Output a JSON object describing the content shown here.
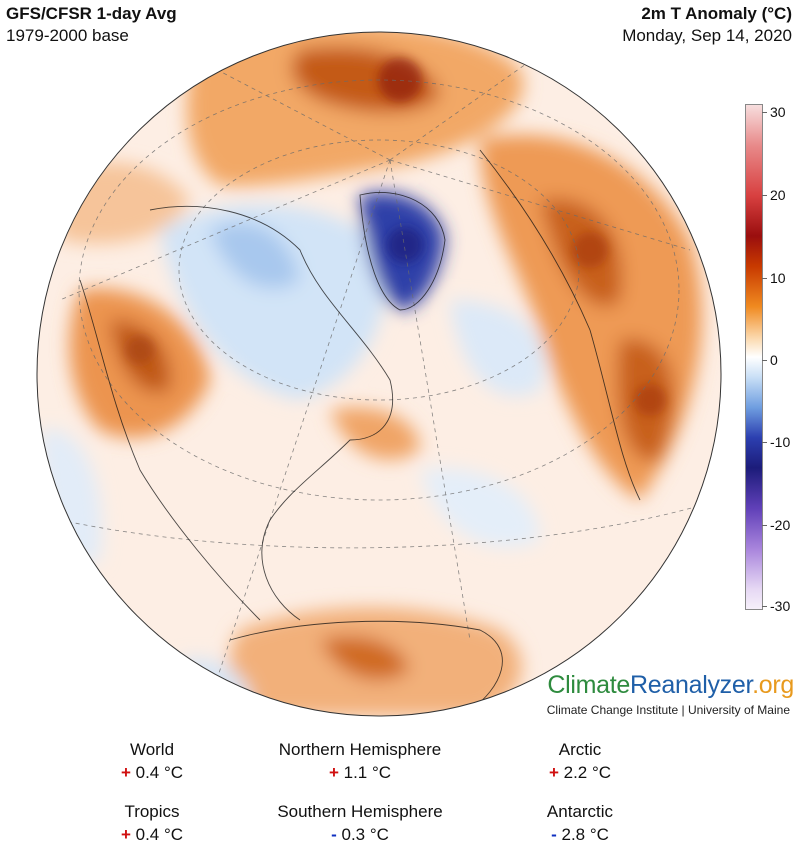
{
  "header": {
    "model_title": "GFS/CFSR 1-day Avg",
    "base_period": "1979-2000 base",
    "variable_title": "2m T Anomaly (°C)",
    "date": "Monday, Sep 14, 2020"
  },
  "colorbar": {
    "ticks": [
      "30",
      "20",
      "10",
      "0",
      "-10",
      "-20",
      "-30"
    ]
  },
  "brand": {
    "part1": "Climate",
    "part2": "Reanalyzer",
    "part3": ".org",
    "subtitle": "Climate Change Institute | University of Maine"
  },
  "stats": [
    {
      "label": "World",
      "sign": "+",
      "value": "0.4 °C"
    },
    {
      "label": "Northern Hemisphere",
      "sign": "+",
      "value": "1.1 °C"
    },
    {
      "label": "Arctic",
      "sign": "+",
      "value": "2.2 °C"
    },
    {
      "label": "Tropics",
      "sign": "+",
      "value": "0.4 °C"
    },
    {
      "label": "Southern Hemisphere",
      "sign": "-",
      "value": "0.3 °C"
    },
    {
      "label": "Antarctic",
      "sign": "-",
      "value": "2.8 °C"
    }
  ]
}
